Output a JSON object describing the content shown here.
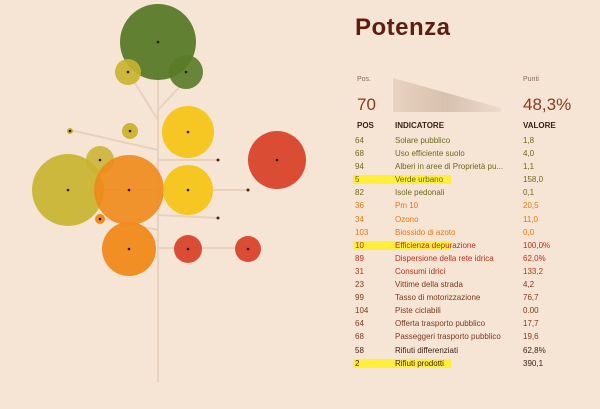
{
  "colors": {
    "background": "#f6e5d5",
    "title": "#5a1f12",
    "highlight": "#ffee3a",
    "green": "#5a7a28",
    "olive": "#c9b22e",
    "yellow": "#f5c518",
    "orange": "#f08a1a",
    "red": "#d9432b",
    "row_neutral": "#3a1e15",
    "row_green": "#6b6a1e",
    "row_orange": "#e07a10",
    "row_red": "#b5321f",
    "row_brown": "#7a3a22"
  },
  "header": {
    "city": "Potenza",
    "pos_label": "Pos.",
    "pos_value": "70",
    "points_label": "Punti",
    "points_value": "48,3%"
  },
  "table": {
    "headers": {
      "pos": "POS",
      "indicator": "INDICATORE",
      "value": "VALORE"
    },
    "rows": [
      {
        "pos": "64",
        "indicator": "Solare pubblico",
        "value": "1,8",
        "tone": "green",
        "highlight": false
      },
      {
        "pos": "68",
        "indicator": "Uso efficiente suolo",
        "value": "4,0",
        "tone": "green",
        "highlight": false
      },
      {
        "pos": "94",
        "indicator": "Alberi in aree di Proprietà pu...",
        "value": "1,1",
        "tone": "green",
        "highlight": false
      },
      {
        "pos": "5",
        "indicator": "Verde urbano",
        "value": "158,0",
        "tone": "green",
        "highlight": true
      },
      {
        "pos": "82",
        "indicator": "Isole pedonali",
        "value": "0,1",
        "tone": "green",
        "highlight": false
      },
      {
        "pos": "36",
        "indicator": "Pm 10",
        "value": "20,5",
        "tone": "orange",
        "highlight": false
      },
      {
        "pos": "34",
        "indicator": "Ozono",
        "value": "11,0",
        "tone": "orange",
        "highlight": false
      },
      {
        "pos": "103",
        "indicator": "Biossido di azoto",
        "value": "0,0",
        "tone": "orange",
        "highlight": false
      },
      {
        "pos": "10",
        "indicator": "Efficienza depurazione",
        "value": "100,0%",
        "tone": "red",
        "highlight": true
      },
      {
        "pos": "89",
        "indicator": "Dispersione della rete idrica",
        "value": "62,0%",
        "tone": "red",
        "highlight": false
      },
      {
        "pos": "31",
        "indicator": "Consumi idrici",
        "value": "133,2",
        "tone": "red",
        "highlight": false
      },
      {
        "pos": "23",
        "indicator": "Vittime della strada",
        "value": "4,2",
        "tone": "brown",
        "highlight": false
      },
      {
        "pos": "99",
        "indicator": "Tasso di motorizzazione",
        "value": "76,7",
        "tone": "brown",
        "highlight": false
      },
      {
        "pos": "104",
        "indicator": "Piste ciclabili",
        "value": "0.00",
        "tone": "brown",
        "highlight": false
      },
      {
        "pos": "64",
        "indicator": "Offerta trasporto pubblico",
        "value": "17,7",
        "tone": "brown",
        "highlight": false
      },
      {
        "pos": "68",
        "indicator": "Passeggeri trasporto pubblico",
        "value": "19,6",
        "tone": "brown",
        "highlight": false
      },
      {
        "pos": "58",
        "indicator": "Rifiuti differenziati",
        "value": "62,8%",
        "tone": "neutral",
        "highlight": false
      },
      {
        "pos": "2",
        "indicator": "Rifiuti prodotti",
        "value": "390,1",
        "tone": "neutral",
        "highlight": true
      }
    ]
  },
  "tree_bubbles": [
    {
      "name": "bubble-green-large",
      "color": "green"
    },
    {
      "name": "bubble-olive-small",
      "color": "olive"
    },
    {
      "name": "bubble-green-small",
      "color": "green"
    },
    {
      "name": "bubble-yellow-top",
      "color": "yellow"
    },
    {
      "name": "bubble-red-right",
      "color": "red"
    },
    {
      "name": "bubble-olive-tiny",
      "color": "olive"
    },
    {
      "name": "bubble-olive-dot",
      "color": "olive"
    },
    {
      "name": "bubble-olive-mid",
      "color": "olive"
    },
    {
      "name": "bubble-olive-large",
      "color": "olive"
    },
    {
      "name": "bubble-orange-large",
      "color": "orange"
    },
    {
      "name": "bubble-yellow-mid",
      "color": "yellow"
    },
    {
      "name": "bubble-orange-dot",
      "color": "orange"
    },
    {
      "name": "bubble-orange-bottom",
      "color": "orange"
    },
    {
      "name": "bubble-red-small-a",
      "color": "red"
    },
    {
      "name": "bubble-red-small-b",
      "color": "red"
    }
  ]
}
